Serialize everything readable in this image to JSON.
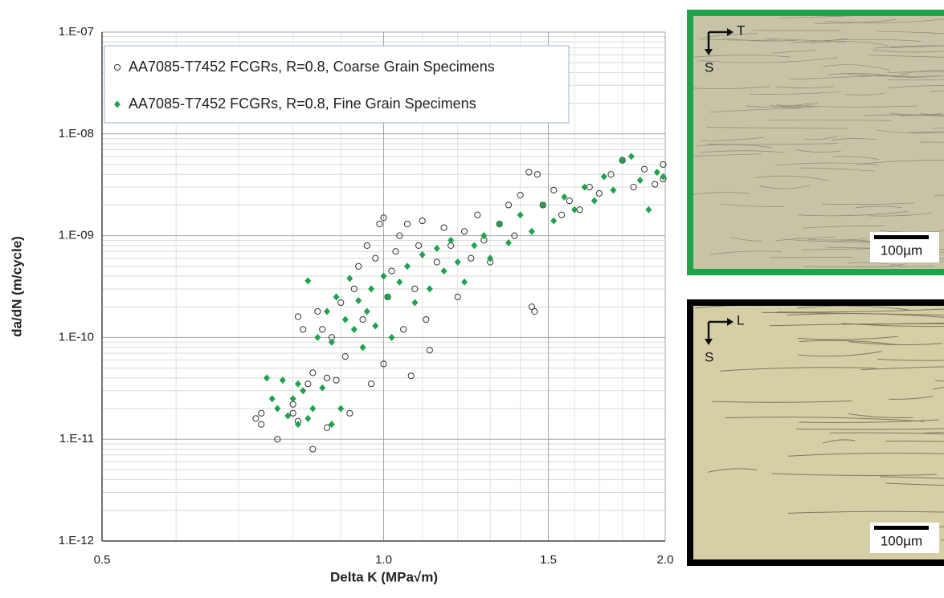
{
  "chart_data": {
    "type": "scatter",
    "x_label": "Delta K (MPa√m)",
    "y_label": "da/dN (m/cycle)",
    "xlim": [
      0.5,
      2
    ],
    "ylim": [
      1e-12,
      1e-07
    ],
    "log_x": true,
    "log_y": true,
    "grid": true,
    "minor_grid": true,
    "xticks": [
      0.5,
      {
        "value": 1,
        "label": "1.0"
      },
      1.5,
      {
        "value": 2,
        "label": "2.0"
      }
    ],
    "yticks": [
      {
        "value": 1e-12,
        "label": "1.E-12"
      },
      {
        "value": 1e-11,
        "label": "1.E-11"
      },
      {
        "value": 1e-10,
        "label": "1.E-10"
      },
      {
        "value": 1e-09,
        "label": "1.E-09"
      },
      {
        "value": 1e-08,
        "label": "1.E-08"
      },
      {
        "value": 1e-07,
        "label": "1.E-07"
      }
    ],
    "legend": "upper left",
    "series": [
      {
        "name": "AA7085-T7452 FCGRs, R=0.8, Coarse Grain Specimens",
        "color": "#333333",
        "marker": "open-circle",
        "x": [
          0.73,
          0.74,
          0.74,
          0.77,
          0.8,
          0.8,
          0.81,
          0.81,
          0.82,
          0.83,
          0.84,
          0.84,
          0.85,
          0.86,
          0.87,
          0.87,
          0.88,
          0.89,
          0.9,
          0.91,
          0.92,
          0.93,
          0.94,
          0.95,
          0.96,
          0.97,
          0.98,
          0.99,
          1.0,
          1.0,
          1.01,
          1.02,
          1.03,
          1.04,
          1.05,
          1.06,
          1.07,
          1.08,
          1.09,
          1.1,
          1.11,
          1.12,
          1.14,
          1.16,
          1.18,
          1.2,
          1.22,
          1.24,
          1.26,
          1.28,
          1.3,
          1.33,
          1.36,
          1.38,
          1.4,
          1.43,
          1.44,
          1.45,
          1.46,
          1.48,
          1.52,
          1.55,
          1.58,
          1.62,
          1.66,
          1.7,
          1.75,
          1.8,
          1.85,
          1.9,
          1.95,
          1.99,
          1.99
        ],
        "values": [
          1.6e-11,
          1.8e-11,
          1.4e-11,
          1e-11,
          1.8e-11,
          2.2e-11,
          1.5e-11,
          1.6e-10,
          1.2e-10,
          3.5e-11,
          4.5e-11,
          8e-12,
          1.8e-10,
          1.2e-10,
          4e-11,
          1.3e-11,
          1e-10,
          3.8e-11,
          2.2e-10,
          6.5e-11,
          1.8e-11,
          3e-10,
          5e-10,
          1.5e-10,
          8e-10,
          3.5e-11,
          6e-10,
          1.3e-09,
          5.5e-11,
          1.5e-09,
          2.5e-10,
          4.5e-10,
          7e-10,
          1e-09,
          1.2e-10,
          1.3e-09,
          4.2e-11,
          3e-10,
          8e-10,
          1.4e-09,
          1.5e-10,
          7.5e-11,
          5.5e-10,
          1.2e-09,
          8e-10,
          2.5e-10,
          1.1e-09,
          6e-10,
          1.6e-09,
          9e-10,
          5.5e-10,
          1.3e-09,
          2e-09,
          1e-09,
          2.5e-09,
          4.2e-09,
          2e-10,
          1.8e-10,
          4e-09,
          2e-09,
          2.8e-09,
          1.6e-09,
          2.2e-09,
          1.8e-09,
          3e-09,
          2.6e-09,
          4e-09,
          5.5e-09,
          3e-09,
          4.5e-09,
          3.2e-09,
          5e-09,
          3.6e-09
        ]
      },
      {
        "name": "AA7085-T7452 FCGRs, R=0.8, Fine Grain Specimens",
        "color": "#1fa34a",
        "marker": "diamond",
        "x": [
          0.75,
          0.76,
          0.77,
          0.78,
          0.79,
          0.8,
          0.81,
          0.81,
          0.82,
          0.83,
          0.83,
          0.84,
          0.85,
          0.86,
          0.87,
          0.88,
          0.88,
          0.89,
          0.9,
          0.91,
          0.92,
          0.93,
          0.94,
          0.95,
          0.96,
          0.97,
          0.98,
          1.0,
          1.01,
          1.02,
          1.04,
          1.06,
          1.08,
          1.1,
          1.12,
          1.14,
          1.16,
          1.18,
          1.2,
          1.22,
          1.25,
          1.28,
          1.3,
          1.33,
          1.36,
          1.4,
          1.44,
          1.48,
          1.52,
          1.56,
          1.6,
          1.64,
          1.68,
          1.72,
          1.76,
          1.8,
          1.84,
          1.88,
          1.92,
          1.96,
          1.99
        ],
        "values": [
          4e-11,
          2.5e-11,
          2e-11,
          3.8e-11,
          1.7e-11,
          2.5e-11,
          3.5e-11,
          1.4e-11,
          3e-11,
          1.6e-11,
          3.6e-10,
          2e-11,
          1e-10,
          3.2e-11,
          1.8e-10,
          1.4e-11,
          9e-11,
          2.5e-10,
          2e-11,
          1.5e-10,
          3.8e-10,
          1.2e-10,
          2.3e-10,
          8e-11,
          1.8e-10,
          3e-10,
          1.3e-10,
          4e-10,
          2.5e-10,
          1e-10,
          3.5e-10,
          5e-10,
          2.2e-10,
          6.5e-10,
          3e-10,
          7.5e-10,
          4.5e-10,
          9e-10,
          5.5e-10,
          3.5e-10,
          8e-10,
          1e-09,
          6e-10,
          1.3e-09,
          8.5e-10,
          1.6e-09,
          1.1e-09,
          2e-09,
          1.4e-09,
          2.4e-09,
          1.8e-09,
          3e-09,
          2.2e-09,
          3.8e-09,
          2.8e-09,
          5.5e-09,
          6e-09,
          3.5e-09,
          1.8e-09,
          4.2e-09,
          3.8e-09
        ]
      }
    ]
  },
  "micrographs": [
    {
      "frame": "#1fa34a",
      "across": "T",
      "down": "S",
      "scale": "100µm"
    },
    {
      "frame": "#000000",
      "across": "L",
      "down": "S",
      "scale": "100µm"
    }
  ]
}
